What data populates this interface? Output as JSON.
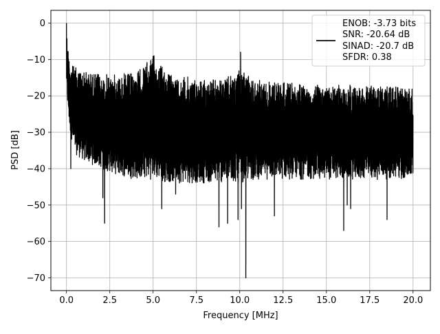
{
  "chart_data": {
    "type": "line",
    "title": "",
    "xlabel": "Frequency [MHz]",
    "ylabel": "PSD [dB]",
    "xlim": [
      -0.9,
      21.0
    ],
    "ylim": [
      -73.5,
      3.5
    ],
    "xticks": [
      0.0,
      2.5,
      5.0,
      7.5,
      10.0,
      12.5,
      15.0,
      17.5,
      20.0
    ],
    "xtick_labels": [
      "0.0",
      "2.5",
      "5.0",
      "7.5",
      "10.0",
      "12.5",
      "15.0",
      "17.5",
      "20.0"
    ],
    "yticks": [
      0,
      -10,
      -20,
      -30,
      -40,
      -50,
      -60,
      -70
    ],
    "ytick_labels": [
      "0",
      "−10",
      "−20",
      "−30",
      "−40",
      "−50",
      "−60",
      "−70"
    ],
    "grid": true,
    "legend": {
      "placement": "top-right",
      "entries": [
        "ENOB: -3.73 bits",
        "SNR: -20.64 dB",
        "SINAD: -20.7 dB",
        "SFDR: 0.38"
      ]
    },
    "series": [
      {
        "color": "#000000",
        "envelope": {
          "x": [
            0.0,
            0.05,
            0.2,
            0.5,
            1.0,
            2.0,
            3.0,
            4.0,
            5.0,
            6.0,
            7.5,
            9.0,
            10.0,
            11.0,
            12.5,
            14.0,
            15.0,
            16.0,
            17.5,
            19.0,
            20.0
          ],
          "upper": [
            0.0,
            -5.0,
            -11.0,
            -12.0,
            -13.0,
            -14.0,
            -14.0,
            -13.5,
            -9.0,
            -14.0,
            -15.0,
            -15.5,
            -13.0,
            -15.5,
            -16.0,
            -17.0,
            -17.0,
            -17.0,
            -17.0,
            -17.5,
            -18.0
          ],
          "lower": [
            -17.0,
            -22.0,
            -30.0,
            -36.0,
            -38.0,
            -40.0,
            -42.0,
            -43.0,
            -43.0,
            -44.0,
            -44.0,
            -44.0,
            -44.0,
            -43.0,
            -43.0,
            -43.0,
            -43.0,
            -43.0,
            -43.0,
            -43.0,
            -43.0
          ]
        },
        "spikes": [
          {
            "x": 0.0,
            "y": 0.0
          },
          {
            "x": 5.05,
            "y": -9.0
          },
          {
            "x": 10.05,
            "y": -8.0
          },
          {
            "x": 10.35,
            "y": -70.0
          },
          {
            "x": 0.25,
            "y": -40.0
          },
          {
            "x": 2.2,
            "y": -55.0
          },
          {
            "x": 2.1,
            "y": -48.0
          },
          {
            "x": 5.5,
            "y": -51.0
          },
          {
            "x": 8.8,
            "y": -56.0
          },
          {
            "x": 9.3,
            "y": -55.0
          },
          {
            "x": 9.9,
            "y": -54.0
          },
          {
            "x": 10.1,
            "y": -51.0
          },
          {
            "x": 12.0,
            "y": -53.0
          },
          {
            "x": 16.0,
            "y": -57.0
          },
          {
            "x": 16.4,
            "y": -51.0
          },
          {
            "x": 16.2,
            "y": -50.0
          },
          {
            "x": 18.5,
            "y": -54.0
          },
          {
            "x": 6.3,
            "y": -47.0
          }
        ]
      }
    ]
  }
}
